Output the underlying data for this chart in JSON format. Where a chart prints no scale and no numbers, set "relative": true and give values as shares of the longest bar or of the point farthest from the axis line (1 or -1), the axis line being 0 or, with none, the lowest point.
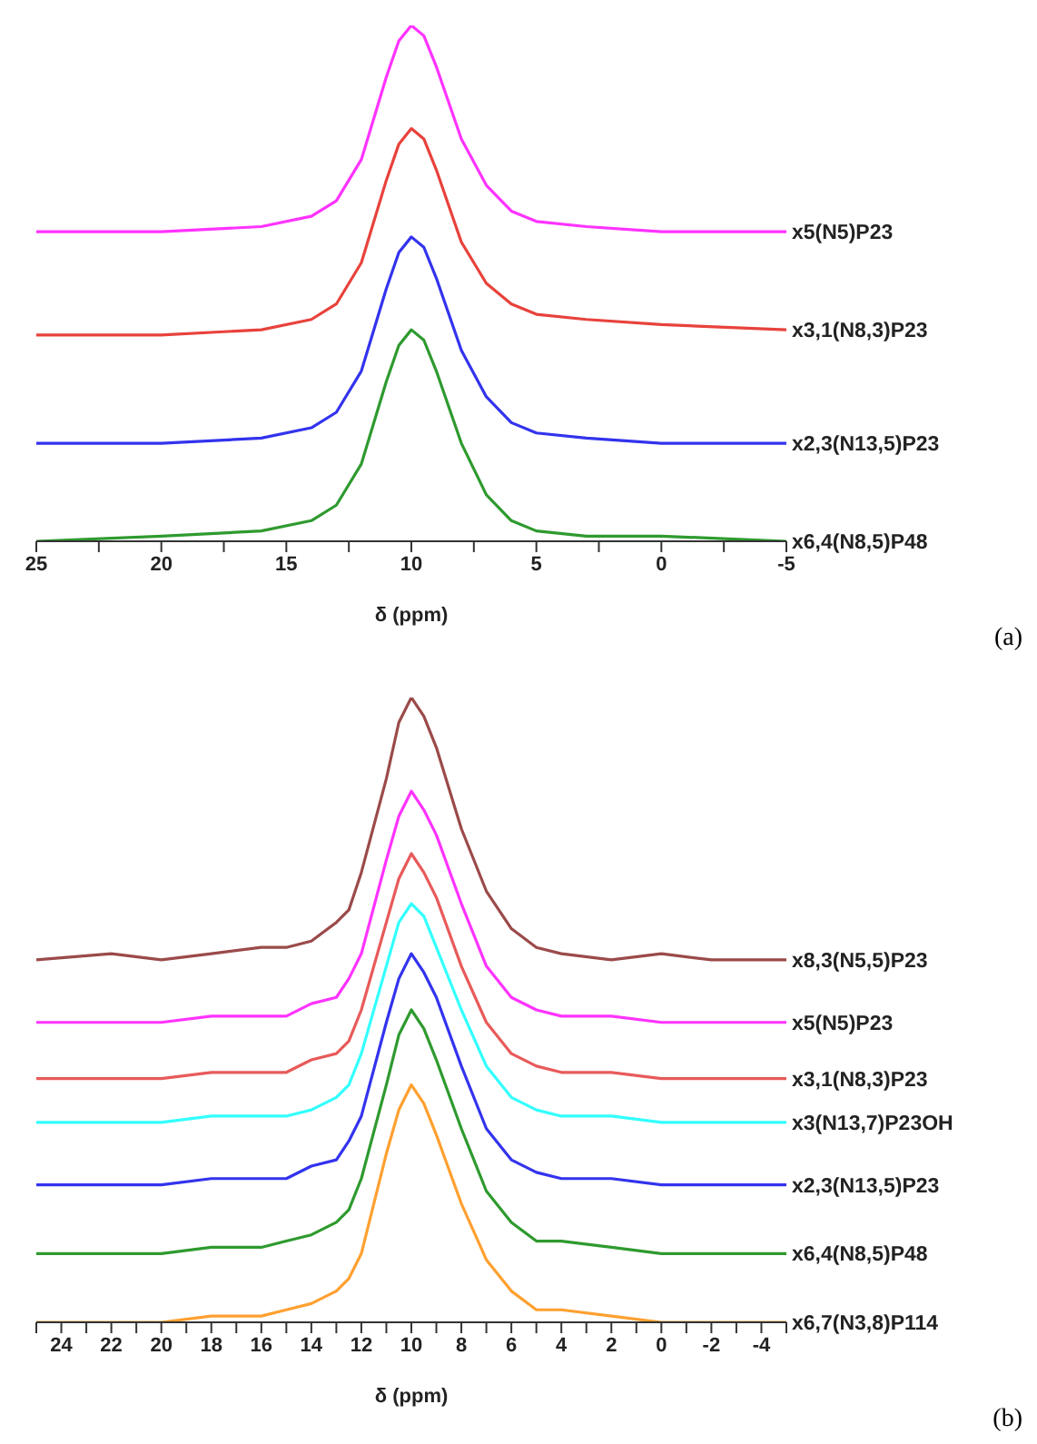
{
  "chart_data": [
    {
      "type": "line",
      "relative": true,
      "xlabel": "δ (ppm)",
      "annotations": [
        "(a)"
      ],
      "legend": false,
      "grid": false,
      "marker": "none",
      "line_style": "solid",
      "tick_labels": "x",
      "xlim": [
        25,
        -5
      ],
      "xticks": [
        25,
        {
          "value": 22.5,
          "label": null
        },
        20,
        {
          "value": 17.5,
          "label": null
        },
        15,
        {
          "value": 12.5,
          "label": null
        },
        10,
        {
          "value": 7.5,
          "label": null
        },
        5,
        {
          "value": 2.5,
          "label": null
        },
        0,
        {
          "value": -2.5,
          "label": null
        },
        -5
      ],
      "x": [
        25,
        20,
        16,
        14,
        13,
        12,
        11,
        10.5,
        10,
        9.5,
        9,
        8,
        7,
        6,
        5,
        3,
        0,
        -5
      ],
      "series": [
        {
          "name": "x5(N5)P23",
          "color": "#ff33ff",
          "values": [
            0.6,
            0.6,
            0.61,
            0.63,
            0.66,
            0.74,
            0.9,
            0.97,
            1.0,
            0.98,
            0.92,
            0.78,
            0.69,
            0.64,
            0.62,
            0.61,
            0.6,
            0.6
          ]
        },
        {
          "name": "x3,1(N8,3)P23",
          "color": "#e8423c",
          "values": [
            0.4,
            0.4,
            0.41,
            0.43,
            0.46,
            0.54,
            0.7,
            0.77,
            0.8,
            0.78,
            0.72,
            0.58,
            0.5,
            0.46,
            0.44,
            0.43,
            0.42,
            0.41
          ]
        },
        {
          "name": "x2,3(N13,5)P23",
          "color": "#3333ee",
          "values": [
            0.19,
            0.19,
            0.2,
            0.22,
            0.25,
            0.33,
            0.49,
            0.56,
            0.59,
            0.57,
            0.51,
            0.37,
            0.28,
            0.23,
            0.21,
            0.2,
            0.19,
            0.19
          ]
        },
        {
          "name": "x6,4(N8,5)P48",
          "color": "#2e9a2e",
          "values": [
            0,
            0.01,
            0.02,
            0.04,
            0.07,
            0.15,
            0.31,
            0.38,
            0.41,
            0.39,
            0.33,
            0.19,
            0.09,
            0.04,
            0.02,
            0.01,
            0.01,
            0
          ]
        }
      ]
    },
    {
      "type": "line",
      "relative": true,
      "xlabel": "δ (ppm)",
      "annotations": [
        "(b)"
      ],
      "legend": false,
      "grid": false,
      "marker": "none",
      "line_style": "solid",
      "tick_labels": "x",
      "xlim": [
        25,
        -5
      ],
      "xticks": [
        {
          "value": 25,
          "label": null
        },
        24,
        {
          "value": 23,
          "label": null
        },
        22,
        {
          "value": 21,
          "label": null
        },
        20,
        {
          "value": 19,
          "label": null
        },
        18,
        {
          "value": 17,
          "label": null
        },
        16,
        {
          "value": 15,
          "label": null
        },
        14,
        {
          "value": 13,
          "label": null
        },
        12,
        {
          "value": 11,
          "label": null
        },
        10,
        {
          "value": 9,
          "label": null
        },
        8,
        {
          "value": 7,
          "label": null
        },
        6,
        {
          "value": 5,
          "label": null
        },
        4,
        {
          "value": 3,
          "label": null
        },
        2,
        {
          "value": 1,
          "label": null
        },
        0,
        {
          "value": -1,
          "label": null
        },
        -2,
        {
          "value": -3,
          "label": null
        },
        -4,
        {
          "value": -5,
          "label": null
        }
      ],
      "x": [
        25,
        22,
        20,
        18,
        16,
        15,
        14,
        13,
        12.5,
        12,
        11,
        10.5,
        10,
        9.5,
        9,
        8,
        7,
        6,
        5,
        4,
        2,
        0,
        -2,
        -5
      ],
      "series": [
        {
          "name": "x8,3(N5,5)P23",
          "color": "#9b4a4a",
          "values": [
            0.58,
            0.59,
            0.58,
            0.59,
            0.6,
            0.6,
            0.61,
            0.64,
            0.66,
            0.72,
            0.87,
            0.96,
            1.0,
            0.97,
            0.92,
            0.79,
            0.69,
            0.63,
            0.6,
            0.59,
            0.58,
            0.59,
            0.58,
            0.58
          ]
        },
        {
          "name": "x5(N5)P23",
          "color": "#ff33ff",
          "values": [
            0.48,
            0.48,
            0.48,
            0.49,
            0.49,
            0.49,
            0.51,
            0.52,
            0.55,
            0.59,
            0.74,
            0.81,
            0.85,
            0.82,
            0.78,
            0.67,
            0.57,
            0.52,
            0.5,
            0.49,
            0.49,
            0.48,
            0.48,
            0.48
          ]
        },
        {
          "name": "x3,1(N8,3)P23",
          "color": "#e85a5a",
          "values": [
            0.39,
            0.39,
            0.39,
            0.4,
            0.4,
            0.4,
            0.42,
            0.43,
            0.45,
            0.5,
            0.64,
            0.71,
            0.75,
            0.72,
            0.68,
            0.57,
            0.48,
            0.43,
            0.41,
            0.4,
            0.4,
            0.39,
            0.39,
            0.39
          ]
        },
        {
          "name": "x3(N13,7)P23OH",
          "color": "#33ffff",
          "values": [
            0.32,
            0.32,
            0.32,
            0.33,
            0.33,
            0.33,
            0.34,
            0.36,
            0.38,
            0.43,
            0.57,
            0.64,
            0.67,
            0.65,
            0.6,
            0.5,
            0.41,
            0.36,
            0.34,
            0.33,
            0.33,
            0.32,
            0.32,
            0.32
          ]
        },
        {
          "name": "x2,3(N13,5)P23",
          "color": "#3333ee",
          "values": [
            0.22,
            0.22,
            0.22,
            0.23,
            0.23,
            0.23,
            0.25,
            0.26,
            0.29,
            0.33,
            0.48,
            0.55,
            0.59,
            0.56,
            0.52,
            0.41,
            0.31,
            0.26,
            0.24,
            0.23,
            0.23,
            0.22,
            0.22,
            0.22
          ]
        },
        {
          "name": "x6,4(N8,5)P48",
          "color": "#2e9a2e",
          "values": [
            0.11,
            0.11,
            0.11,
            0.12,
            0.12,
            0.13,
            0.14,
            0.16,
            0.18,
            0.23,
            0.38,
            0.46,
            0.5,
            0.47,
            0.42,
            0.31,
            0.21,
            0.16,
            0.13,
            0.13,
            0.12,
            0.11,
            0.11,
            0.11
          ]
        },
        {
          "name": "x6,7(N3,8)P114",
          "color": "#ffa030",
          "values": [
            0,
            0,
            0,
            0.01,
            0.01,
            0.02,
            0.03,
            0.05,
            0.07,
            0.11,
            0.27,
            0.34,
            0.38,
            0.35,
            0.3,
            0.19,
            0.1,
            0.05,
            0.02,
            0.02,
            0.01,
            0,
            0,
            0
          ]
        }
      ]
    }
  ]
}
